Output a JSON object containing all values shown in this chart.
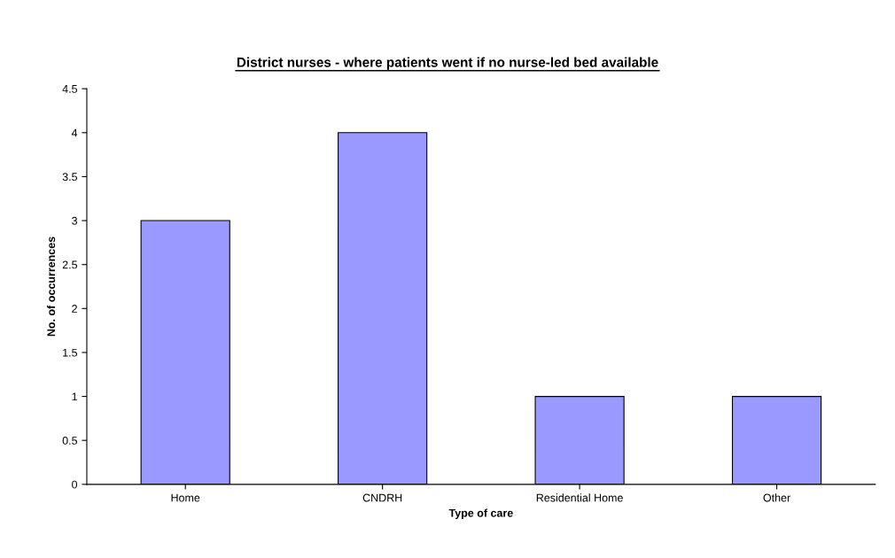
{
  "chart_data": {
    "type": "bar",
    "title": "District nurses - where patients went if no nurse-led bed available",
    "xlabel": "Type of care",
    "ylabel": "No. of occurrences",
    "categories": [
      "Home",
      "CNDRH",
      "Residential Home",
      "Other"
    ],
    "values": [
      3,
      4,
      1,
      1
    ],
    "color": "#9999ff",
    "ylim": [
      0,
      4.5
    ],
    "yticks": [
      0,
      0.5,
      1,
      1.5,
      2,
      2.5,
      3,
      3.5,
      4,
      4.5
    ],
    "grid": false,
    "legend": false
  }
}
